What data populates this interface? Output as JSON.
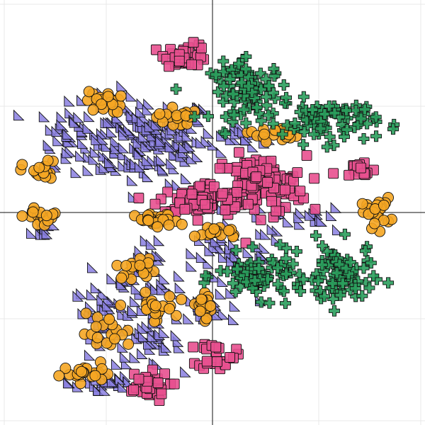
{
  "chart_data": {
    "type": "scatter",
    "title": "",
    "xlabel": "",
    "ylabel": "",
    "xlim": [
      -100,
      100
    ],
    "ylim": [
      -100,
      100
    ],
    "grid": true,
    "axes_through_origin": true,
    "legend": "none",
    "series": [
      {
        "marker": "square",
        "color": "#e8508f",
        "clusters": [
          {
            "center": [
              -12,
              74
            ],
            "spread": [
              6,
              3
            ],
            "count": 38
          },
          {
            "center": [
              22,
              13
            ],
            "spread": [
              13,
              8
            ],
            "count": 120
          },
          {
            "center": [
              70,
              20
            ],
            "spread": [
              4,
              3
            ],
            "count": 18
          },
          {
            "center": [
              -5,
              6
            ],
            "spread": [
              12,
              4
            ],
            "count": 70
          },
          {
            "center": [
              2,
              -67
            ],
            "spread": [
              5,
              4
            ],
            "count": 28
          },
          {
            "center": [
              -32,
              -82
            ],
            "spread": [
              7,
              4
            ],
            "count": 38
          }
        ]
      },
      {
        "marker": "circle",
        "color": "#f5a623",
        "clusters": [
          {
            "center": [
              -51,
              52
            ],
            "spread": [
              5,
              3
            ],
            "count": 24
          },
          {
            "center": [
              -18,
              45
            ],
            "spread": [
              5,
              3
            ],
            "count": 20
          },
          {
            "center": [
              28,
              37
            ],
            "spread": [
              7,
              2
            ],
            "count": 18
          },
          {
            "center": [
              -81,
              19
            ],
            "spread": [
              5,
              3
            ],
            "count": 20
          },
          {
            "center": [
              -80,
              -2
            ],
            "spread": [
              5,
              3
            ],
            "count": 18
          },
          {
            "center": [
              -26,
              -4
            ],
            "spread": [
              6,
              2
            ],
            "count": 28
          },
          {
            "center": [
              3,
              -9
            ],
            "spread": [
              6,
              2
            ],
            "count": 20
          },
          {
            "center": [
              77,
              0
            ],
            "spread": [
              4,
              4
            ],
            "count": 24
          },
          {
            "center": [
              -35,
              -26
            ],
            "spread": [
              6,
              3
            ],
            "count": 18
          },
          {
            "center": [
              -28,
              -45
            ],
            "spread": [
              6,
              4
            ],
            "count": 22
          },
          {
            "center": [
              -4,
              -43
            ],
            "spread": [
              4,
              4
            ],
            "count": 18
          },
          {
            "center": [
              -50,
              -57
            ],
            "spread": [
              7,
              5
            ],
            "count": 20
          },
          {
            "center": [
              -59,
              -76
            ],
            "spread": [
              7,
              2
            ],
            "count": 22
          }
        ]
      },
      {
        "marker": "plus",
        "color": "#2a9d5c",
        "clusters": [
          {
            "center": [
              18,
              57
            ],
            "spread": [
              11,
              8
            ],
            "count": 90
          },
          {
            "center": [
              55,
              43
            ],
            "spread": [
              13,
              6
            ],
            "count": 80
          },
          {
            "center": [
              23,
              -30
            ],
            "spread": [
              12,
              6
            ],
            "count": 80
          },
          {
            "center": [
              60,
              -30
            ],
            "spread": [
              9,
              9
            ],
            "count": 80
          }
        ]
      },
      {
        "marker": "triangle",
        "color": "#8a7fe0",
        "clusters": [
          {
            "center": [
              -32,
              34
            ],
            "spread": [
              20,
              12
            ],
            "count": 180
          },
          {
            "center": [
              -67,
              37
            ],
            "spread": [
              8,
              8
            ],
            "count": 30
          },
          {
            "center": [
              -80,
              -8
            ],
            "spread": [
              3,
              3
            ],
            "count": 10
          },
          {
            "center": [
              -27,
              -28
            ],
            "spread": [
              12,
              10
            ],
            "count": 40
          },
          {
            "center": [
              -50,
              -47
            ],
            "spread": [
              9,
              7
            ],
            "count": 40
          },
          {
            "center": [
              -30,
              -62
            ],
            "spread": [
              9,
              6
            ],
            "count": 35
          },
          {
            "center": [
              -50,
              -80
            ],
            "spread": [
              10,
              4
            ],
            "count": 25
          },
          {
            "center": [
              10,
              -18
            ],
            "spread": [
              15,
              7
            ],
            "count": 35
          },
          {
            "center": [
              40,
              -3
            ],
            "spread": [
              15,
              4
            ],
            "count": 20
          },
          {
            "center": [
              17,
              35
            ],
            "spread": [
              10,
              3
            ],
            "count": 20
          },
          {
            "center": [
              2,
              -45
            ],
            "spread": [
              10,
              6
            ],
            "count": 25
          }
        ]
      }
    ]
  },
  "colors": {
    "background": "#ffffff",
    "grid": "#e8e8e8",
    "axis": "#111111",
    "marker_edge": "#111111"
  }
}
